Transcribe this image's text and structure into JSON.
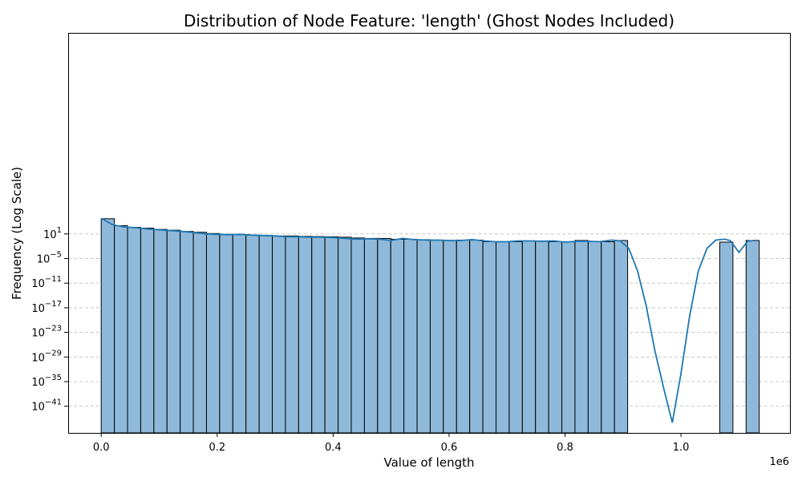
{
  "chart_data": {
    "type": "bar",
    "title": "Distribution of Node Feature: 'length' (Ghost Nodes Included)",
    "xlabel": "Value of length",
    "ylabel": "Frequency (Log Scale)",
    "x_offset_label": "1e6",
    "x_scale_factor": 1000000,
    "y_scale": "log",
    "xlim": [
      -57000,
      1188000
    ],
    "ylim_log10": [
      -47.5,
      50
    ],
    "x_ticks": [
      0,
      200000,
      400000,
      600000,
      800000,
      1000000
    ],
    "x_tick_labels": [
      "0.0",
      "0.2",
      "0.4",
      "0.6",
      "0.8",
      "1.0"
    ],
    "y_ticks_exponent": [
      1,
      -5,
      -11,
      -17,
      -23,
      -29,
      -35,
      -41
    ],
    "y_tick_base": "10",
    "grid": {
      "y": true,
      "x": false,
      "style": "dashed"
    },
    "bar_color": "#8fb9da",
    "bar_edge_color": "#000000",
    "kde_color": "#1f77b4",
    "grid_color": "#c8c8c8",
    "bins": {
      "width": 22700,
      "starts": [
        0,
        22700,
        45400,
        68100,
        90800,
        113500,
        136200,
        158900,
        181600,
        204300,
        227000,
        249700,
        272400,
        295100,
        317800,
        340500,
        363200,
        385900,
        408600,
        431300,
        454000,
        476700,
        499400,
        522100,
        544800,
        567500,
        590200,
        612900,
        635600,
        658300,
        681000,
        703700,
        726400,
        749100,
        771800,
        794500,
        817200,
        839900,
        862600,
        885300,
        1066900,
        1112300
      ],
      "log10_counts": [
        4.7,
        3.0,
        2.6,
        2.4,
        2.1,
        1.9,
        1.6,
        1.4,
        1.1,
        0.9,
        0.8,
        0.7,
        0.6,
        0.5,
        0.5,
        0.4,
        0.35,
        0.3,
        0.2,
        0.0,
        -0.1,
        -0.1,
        -0.3,
        -0.3,
        -0.4,
        -0.5,
        -0.6,
        -0.5,
        -0.5,
        -0.9,
        -0.9,
        -0.9,
        -0.7,
        -0.7,
        -0.9,
        -0.9,
        -0.6,
        -0.9,
        -0.9,
        -0.6,
        -1.0,
        -0.6
      ]
    },
    "kde": {
      "x": [
        0,
        20000,
        40000,
        60000,
        80000,
        100000,
        120000,
        140000,
        160000,
        180000,
        200000,
        220000,
        240000,
        260000,
        280000,
        300000,
        320000,
        340000,
        360000,
        380000,
        400000,
        420000,
        440000,
        460000,
        480000,
        500000,
        520000,
        540000,
        560000,
        580000,
        600000,
        620000,
        640000,
        660000,
        680000,
        700000,
        720000,
        740000,
        760000,
        780000,
        800000,
        820000,
        840000,
        860000,
        880000,
        895000,
        910000,
        925000,
        940000,
        955000,
        970000,
        985000,
        1000000,
        1015000,
        1030000,
        1045000,
        1060000,
        1075000,
        1085000,
        1100000,
        1115000,
        1125000
      ],
      "log10_y": [
        4.8,
        3.2,
        2.7,
        2.5,
        2.2,
        2.0,
        1.8,
        1.6,
        1.3,
        1.0,
        0.9,
        0.8,
        0.9,
        0.7,
        0.6,
        0.5,
        0.3,
        0.3,
        0.2,
        0.2,
        0.1,
        -0.1,
        -0.3,
        -0.2,
        -0.3,
        -0.6,
        -0.1,
        -0.4,
        -0.5,
        -0.5,
        -0.6,
        -0.6,
        -0.4,
        -0.7,
        -0.9,
        -0.9,
        -0.7,
        -0.7,
        -0.8,
        -0.7,
        -1.0,
        -0.8,
        -0.8,
        -0.9,
        -0.5,
        -0.7,
        -2.5,
        -8.0,
        -16.5,
        -27.5,
        -36.5,
        -45.0,
        -33.0,
        -19.0,
        -8.0,
        -2.5,
        -0.5,
        -0.3,
        -0.6,
        -3.5,
        -0.8,
        -0.6
      ]
    }
  }
}
